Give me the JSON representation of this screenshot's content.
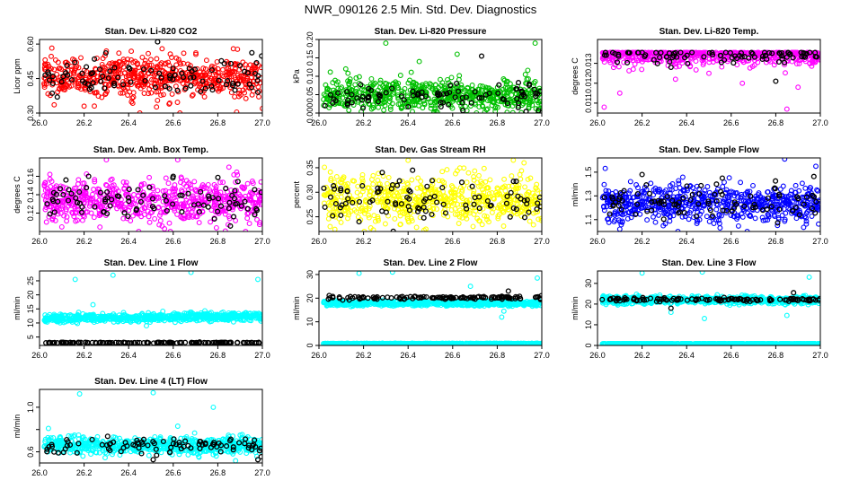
{
  "page_title": "NWR_090126  2.5 Min. Std. Dev. Diagnostics",
  "colors": {
    "red": "#ff0000",
    "green": "#00c000",
    "magenta": "#ff00ff",
    "yellow": "#ffff00",
    "blue": "#0000ff",
    "cyan": "#00ffff",
    "black": "#000000"
  },
  "chart_data": [
    {
      "id": "co2",
      "type": "scatter",
      "title": "Stan. Dev. Li-820 CO2",
      "ylabel": "Licor ppm",
      "xlim": [
        26.0,
        27.0
      ],
      "ylim": [
        0.3,
        0.62
      ],
      "x_ticks": [
        "26.0",
        "26.2",
        "26.4",
        "26.6",
        "26.8",
        "27.0"
      ],
      "y_ticks": [
        0.3,
        0.45,
        0.6
      ],
      "y_tick_labels": [
        "0.30",
        "0.45",
        "0.60"
      ],
      "series": [
        {
          "color": "red",
          "n": 620,
          "center": 0.455,
          "spread": 0.045,
          "outliers": [
            [
              26.2,
              0.33
            ],
            [
              26.45,
              0.3
            ],
            [
              26.63,
              0.3
            ],
            [
              27.0,
              0.32
            ],
            [
              26.55,
              0.58
            ],
            [
              26.3,
              0.57
            ]
          ]
        },
        {
          "color": "black",
          "n": 90,
          "center": 0.46,
          "spread": 0.04,
          "outliers": [
            [
              26.53,
              0.61
            ],
            [
              26.08,
              0.37
            ],
            [
              26.98,
              0.39
            ]
          ]
        }
      ]
    },
    {
      "id": "pressure",
      "type": "scatter",
      "title": "Stan. Dev. Li-820 Pressure",
      "ylabel": "kPa",
      "xlim": [
        26.0,
        27.0
      ],
      "ylim": [
        0.0,
        0.2
      ],
      "x_ticks": [
        "26.0",
        "26.2",
        "26.4",
        "26.6",
        "26.8",
        "27.0"
      ],
      "y_ticks": [
        0.0,
        0.05,
        0.1,
        0.15,
        0.2
      ],
      "y_tick_labels": [
        "0.000",
        "0.05",
        "0.10",
        "0.15",
        "0.20"
      ],
      "series": [
        {
          "color": "green",
          "n": 620,
          "center": 0.048,
          "spread": 0.022,
          "floor": 0.0,
          "outliers": [
            [
              26.3,
              0.19
            ],
            [
              26.97,
              0.19
            ],
            [
              26.62,
              0.16
            ],
            [
              26.12,
              0.12
            ],
            [
              26.45,
              0.14
            ]
          ]
        },
        {
          "color": "black",
          "n": 90,
          "center": 0.04,
          "spread": 0.02,
          "floor": 0.0,
          "outliers": [
            [
              26.73,
              0.155
            ]
          ]
        }
      ]
    },
    {
      "id": "temp",
      "type": "scatter",
      "title": "Stan. Dev. Li-820 Temp.",
      "ylabel": "degrees C",
      "xlim": [
        26.0,
        27.0
      ],
      "ylim": [
        0.0105,
        0.0142
      ],
      "x_ticks": [
        "26.0",
        "26.2",
        "26.4",
        "26.6",
        "26.8",
        "27.0"
      ],
      "y_ticks": [
        0.011,
        0.012,
        0.013
      ],
      "y_tick_labels": [
        "0.011",
        "0.012",
        "0.013"
      ],
      "series": [
        {
          "color": "magenta",
          "n": 620,
          "center": 0.0135,
          "spread": 0.0003,
          "cap": 0.01355,
          "outliers": [
            [
              26.03,
              0.0108
            ],
            [
              26.1,
              0.0115
            ],
            [
              26.5,
              0.0125
            ],
            [
              26.65,
              0.012
            ],
            [
              26.85,
              0.0107
            ],
            [
              26.9,
              0.0118
            ],
            [
              26.35,
              0.0122
            ]
          ]
        },
        {
          "color": "black",
          "n": 90,
          "center": 0.0134,
          "spread": 0.0002,
          "cap": 0.01355,
          "outliers": [
            [
              26.33,
              0.0128
            ],
            [
              26.8,
              0.0121
            ]
          ]
        }
      ]
    },
    {
      "id": "boxtemp",
      "type": "scatter",
      "title": "Stan. Dev. Amb. Box Temp.",
      "ylabel": "degrees C",
      "xlim": [
        26.0,
        27.0
      ],
      "ylim": [
        0.1,
        0.18
      ],
      "x_ticks": [
        "26.0",
        "26.2",
        "26.4",
        "26.6",
        "26.8",
        "27.0"
      ],
      "y_ticks": [
        0.12,
        0.14,
        0.16
      ],
      "y_tick_labels": [
        "0.12",
        "0.14",
        "0.16"
      ],
      "series": [
        {
          "color": "magenta",
          "n": 620,
          "center": 0.133,
          "spread": 0.012,
          "outliers": [
            [
              26.3,
              0.178
            ],
            [
              26.62,
              0.178
            ],
            [
              26.85,
              0.17
            ],
            [
              26.1,
              0.105
            ],
            [
              26.55,
              0.106
            ]
          ]
        },
        {
          "color": "black",
          "n": 90,
          "center": 0.133,
          "spread": 0.011,
          "outliers": [
            [
              26.6,
              0.16
            ],
            [
              26.22,
              0.16
            ]
          ]
        }
      ]
    },
    {
      "id": "rh",
      "type": "scatter",
      "title": "Stan. Dev. Gas Stream RH",
      "ylabel": "percent",
      "xlim": [
        26.0,
        27.0
      ],
      "ylim": [
        0.22,
        0.37
      ],
      "x_ticks": [
        "26.0",
        "26.2",
        "26.4",
        "26.6",
        "26.8",
        "27.0"
      ],
      "y_ticks": [
        0.25,
        0.3,
        0.35
      ],
      "y_tick_labels": [
        "0.25",
        "0.30",
        "0.35"
      ],
      "series": [
        {
          "color": "yellow",
          "n": 620,
          "center": 0.285,
          "spread": 0.025,
          "outliers": [
            [
              26.4,
              0.365
            ],
            [
              26.92,
              0.36
            ],
            [
              26.05,
              0.23
            ],
            [
              26.48,
              0.225
            ]
          ]
        },
        {
          "color": "black",
          "n": 90,
          "center": 0.282,
          "spread": 0.022,
          "outliers": [
            [
              26.42,
              0.345
            ],
            [
              26.18,
              0.24
            ]
          ]
        }
      ]
    },
    {
      "id": "sampleflow",
      "type": "scatter",
      "title": "Stan. Dev. Sample Flow",
      "ylabel": "ml/min",
      "xlim": [
        26.0,
        27.0
      ],
      "ylim": [
        1.0,
        1.62
      ],
      "x_ticks": [
        "26.0",
        "26.2",
        "26.4",
        "26.6",
        "26.8",
        "27.0"
      ],
      "y_ticks": [
        1.1,
        1.3,
        1.5
      ],
      "y_tick_labels": [
        "1.1",
        "1.3",
        "1.5"
      ],
      "series": [
        {
          "color": "blue",
          "n": 620,
          "center": 1.24,
          "spread": 0.08,
          "outliers": [
            [
              26.84,
              1.61
            ],
            [
              26.98,
              1.55
            ],
            [
              26.1,
              1.02
            ],
            [
              26.55,
              1.03
            ]
          ]
        },
        {
          "color": "black",
          "n": 90,
          "center": 1.25,
          "spread": 0.07,
          "outliers": [
            [
              26.2,
              1.48
            ],
            [
              26.56,
              1.45
            ]
          ]
        }
      ]
    },
    {
      "id": "line1",
      "type": "scatter",
      "title": "Stan. Dev. Line 1 Flow",
      "ylabel": "ml/min",
      "xlim": [
        26.0,
        27.0
      ],
      "ylim": [
        2.0,
        28.5
      ],
      "x_ticks": [
        "26.0",
        "26.2",
        "26.4",
        "26.6",
        "26.8",
        "27.0"
      ],
      "y_ticks": [
        5,
        10,
        15,
        20,
        25
      ],
      "y_tick_labels": [
        "5",
        "10",
        "15",
        "20",
        "25"
      ],
      "series": [
        {
          "color": "cyan",
          "n": 700,
          "center": 12.0,
          "spread": 0.7,
          "trend": 1.0,
          "outliers": [
            [
              26.16,
              25.5
            ],
            [
              26.33,
              27.0
            ],
            [
              26.68,
              28.0
            ],
            [
              26.98,
              25.5
            ],
            [
              26.48,
              9.0
            ],
            [
              26.24,
              16.5
            ]
          ]
        },
        {
          "color": "black",
          "n": 130,
          "center": 3.0,
          "spread": 0.08,
          "outliers": []
        }
      ]
    },
    {
      "id": "line2",
      "type": "scatter",
      "title": "Stan. Dev. Line 2 Flow",
      "ylabel": "ml/min",
      "xlim": [
        26.0,
        27.0
      ],
      "ylim": [
        0.0,
        31.5
      ],
      "x_ticks": [
        "26.0",
        "26.2",
        "26.4",
        "26.6",
        "26.8",
        "27.0"
      ],
      "y_ticks": [
        0,
        10,
        20,
        30
      ],
      "y_tick_labels": [
        "0",
        "10",
        "20",
        "30"
      ],
      "series": [
        {
          "color": "cyan",
          "n": 700,
          "center": 17.8,
          "spread": 0.5,
          "outliers": [
            [
              26.18,
              30.5
            ],
            [
              26.33,
              31.0
            ],
            [
              26.68,
              25.0
            ],
            [
              26.82,
              12.0
            ],
            [
              26.83,
              14.5
            ],
            [
              26.98,
              28.5
            ]
          ]
        },
        {
          "color": "cyan",
          "n": 700,
          "center": 0.8,
          "spread": 0.05,
          "outliers": []
        },
        {
          "color": "black",
          "n": 120,
          "center": 20.2,
          "spread": 0.35,
          "outliers": [
            [
              26.85,
              23.0
            ]
          ]
        }
      ]
    },
    {
      "id": "line3",
      "type": "scatter",
      "title": "Stan. Dev. Line 3 Flow",
      "ylabel": "ml/min",
      "xlim": [
        26.0,
        27.0
      ],
      "ylim": [
        0.0,
        36.0
      ],
      "x_ticks": [
        "26.0",
        "26.2",
        "26.4",
        "26.6",
        "26.8",
        "27.0"
      ],
      "y_ticks": [
        0,
        10,
        20,
        30
      ],
      "y_tick_labels": [
        "0",
        "10",
        "20",
        "30"
      ],
      "series": [
        {
          "color": "cyan",
          "n": 700,
          "center": 22.0,
          "spread": 0.9,
          "outliers": [
            [
              26.2,
              35.0
            ],
            [
              26.47,
              35.5
            ],
            [
              26.95,
              33.0
            ],
            [
              26.48,
              13.0
            ],
            [
              26.85,
              14.5
            ],
            [
              26.33,
              16.0
            ]
          ]
        },
        {
          "color": "cyan",
          "n": 700,
          "center": 0.8,
          "spread": 0.05,
          "outliers": []
        },
        {
          "color": "black",
          "n": 120,
          "center": 22.2,
          "spread": 0.45,
          "outliers": [
            [
              26.88,
              25.5
            ],
            [
              26.33,
              18.0
            ]
          ]
        }
      ]
    },
    {
      "id": "line4",
      "type": "scatter",
      "title": "Stan. Dev. Line 4 (LT) Flow",
      "ylabel": "ml/min",
      "xlim": [
        26.0,
        27.0
      ],
      "ylim": [
        0.5,
        1.16
      ],
      "x_ticks": [
        "26.0",
        "26.2",
        "26.4",
        "26.6",
        "26.8",
        "27.0"
      ],
      "y_ticks": [
        0.6,
        0.8,
        1.0
      ],
      "y_tick_labels": [
        "0.6",
        "",
        "1.0"
      ],
      "series": [
        {
          "color": "cyan",
          "n": 700,
          "center": 0.66,
          "spread": 0.035,
          "outliers": [
            [
              26.18,
              1.12
            ],
            [
              26.51,
              1.13
            ],
            [
              26.78,
              1.0
            ],
            [
              26.88,
              0.52
            ],
            [
              26.04,
              0.81
            ],
            [
              26.62,
              0.83
            ]
          ]
        },
        {
          "color": "black",
          "n": 90,
          "center": 0.65,
          "spread": 0.04,
          "outliers": [
            [
              26.51,
              0.53
            ],
            [
              26.98,
              0.53
            ]
          ]
        }
      ]
    }
  ]
}
